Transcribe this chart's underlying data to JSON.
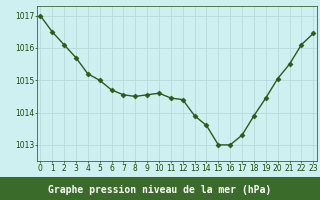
{
  "x": [
    0,
    1,
    2,
    3,
    4,
    5,
    6,
    7,
    8,
    9,
    10,
    11,
    12,
    13,
    14,
    15,
    16,
    17,
    18,
    19,
    20,
    21,
    22,
    23
  ],
  "y": [
    1017.0,
    1016.5,
    1016.1,
    1015.7,
    1015.2,
    1015.0,
    1014.7,
    1014.55,
    1014.5,
    1014.55,
    1014.6,
    1014.45,
    1014.4,
    1013.9,
    1013.6,
    1013.0,
    1013.0,
    1013.3,
    1013.9,
    1014.45,
    1015.05,
    1015.5,
    1016.1,
    1016.45
  ],
  "line_color": "#2d5a1b",
  "marker": "D",
  "marker_size": 2.5,
  "line_width": 1.0,
  "bg_color": "#cff0f0",
  "grid_color": "#b8dada",
  "xlabel": "Graphe pression niveau de la mer (hPa)",
  "xlabel_color": "#1a4a0a",
  "xlabel_fontsize": 7.0,
  "xlabel_bg": "#3a6b2a",
  "tick_color": "#1a4a0a",
  "tick_fontsize": 5.5,
  "ylim": [
    1012.5,
    1017.3
  ],
  "yticks": [
    1013,
    1014,
    1015,
    1016,
    1017
  ],
  "xticks": [
    0,
    1,
    2,
    3,
    4,
    5,
    6,
    7,
    8,
    9,
    10,
    11,
    12,
    13,
    14,
    15,
    16,
    17,
    18,
    19,
    20,
    21,
    22,
    23
  ]
}
